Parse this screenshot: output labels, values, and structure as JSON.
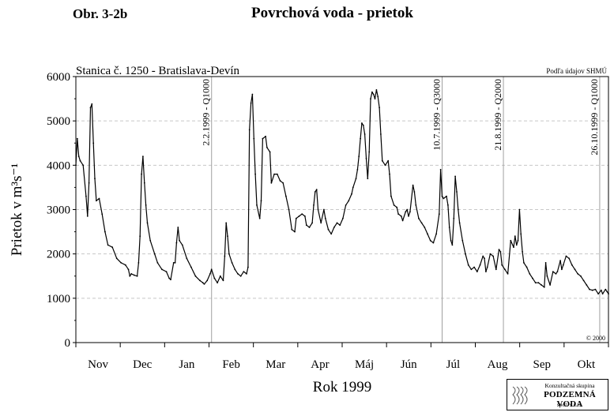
{
  "header": {
    "figure_label": "Obr. 3-2b",
    "title": "Povrchová voda - prietok"
  },
  "chart_data": {
    "type": "line",
    "subtitle": "Stanica č. 1250 - Bratislava-Devín",
    "source_note": "Podľa údajov SHMÚ",
    "copyright": "© 2000",
    "ylabel": "Prietok v m³s⁻¹",
    "xlabel": "Rok 1999",
    "ylim": [
      0,
      6000
    ],
    "yticks": [
      0,
      1000,
      2000,
      3000,
      4000,
      5000,
      6000
    ],
    "grid": "horizontal dashed",
    "months": [
      "Nov",
      "Dec",
      "Jan",
      "Feb",
      "Mar",
      "Apr",
      "Máj",
      "Jún",
      "Júl",
      "Aug",
      "Sep",
      "Okt"
    ],
    "x_range_days": [
      0,
      365
    ],
    "series": [
      {
        "color": "#000000",
        "points": [
          [
            0,
            4000
          ],
          [
            1,
            4600
          ],
          [
            2,
            4200
          ],
          [
            3,
            4100
          ],
          [
            5,
            4000
          ],
          [
            7,
            3300
          ],
          [
            8,
            2850
          ],
          [
            9,
            3600
          ],
          [
            10,
            5300
          ],
          [
            11,
            5380
          ],
          [
            12,
            4500
          ],
          [
            13,
            3700
          ],
          [
            14,
            3200
          ],
          [
            16,
            3250
          ],
          [
            18,
            2900
          ],
          [
            20,
            2500
          ],
          [
            22,
            2200
          ],
          [
            25,
            2150
          ],
          [
            28,
            1900
          ],
          [
            31,
            1800
          ],
          [
            34,
            1750
          ],
          [
            36,
            1650
          ],
          [
            37,
            1500
          ],
          [
            38,
            1550
          ],
          [
            40,
            1520
          ],
          [
            42,
            1500
          ],
          [
            43,
            1800
          ],
          [
            44,
            2400
          ],
          [
            45,
            3800
          ],
          [
            46,
            4200
          ],
          [
            47,
            3600
          ],
          [
            48,
            3100
          ],
          [
            49,
            2700
          ],
          [
            51,
            2300
          ],
          [
            54,
            2000
          ],
          [
            56,
            1800
          ],
          [
            59,
            1650
          ],
          [
            62,
            1600
          ],
          [
            64,
            1450
          ],
          [
            65,
            1420
          ],
          [
            67,
            1800
          ],
          [
            68,
            1800
          ],
          [
            69,
            2250
          ],
          [
            70,
            2600
          ],
          [
            71,
            2300
          ],
          [
            73,
            2200
          ],
          [
            76,
            1900
          ],
          [
            79,
            1700
          ],
          [
            82,
            1500
          ],
          [
            85,
            1400
          ],
          [
            87,
            1350
          ],
          [
            88,
            1320
          ],
          [
            90,
            1400
          ],
          [
            92,
            1550
          ],
          [
            93,
            1650
          ],
          [
            95,
            1450
          ],
          [
            97,
            1350
          ],
          [
            99,
            1500
          ],
          [
            101,
            1400
          ],
          [
            102,
            1950
          ],
          [
            103,
            2700
          ],
          [
            104,
            2400
          ],
          [
            105,
            2000
          ],
          [
            107,
            1800
          ],
          [
            109,
            1650
          ],
          [
            111,
            1550
          ],
          [
            113,
            1500
          ],
          [
            115,
            1600
          ],
          [
            117,
            1550
          ],
          [
            118,
            1700
          ],
          [
            119,
            4800
          ],
          [
            120,
            5400
          ],
          [
            121,
            5600
          ],
          [
            122,
            4600
          ],
          [
            123,
            3800
          ],
          [
            124,
            3100
          ],
          [
            126,
            2800
          ],
          [
            127,
            3200
          ],
          [
            128,
            4600
          ],
          [
            130,
            4650
          ],
          [
            131,
            4400
          ],
          [
            133,
            4300
          ],
          [
            134,
            3600
          ],
          [
            136,
            3800
          ],
          [
            138,
            3800
          ],
          [
            140,
            3650
          ],
          [
            142,
            3600
          ],
          [
            144,
            3300
          ],
          [
            146,
            3000
          ],
          [
            148,
            2550
          ],
          [
            150,
            2500
          ],
          [
            151,
            2800
          ],
          [
            153,
            2850
          ],
          [
            155,
            2900
          ],
          [
            157,
            2850
          ],
          [
            158,
            2650
          ],
          [
            160,
            2600
          ],
          [
            162,
            2700
          ],
          [
            163,
            3100
          ],
          [
            164,
            3400
          ],
          [
            165,
            3450
          ],
          [
            166,
            3000
          ],
          [
            168,
            2700
          ],
          [
            170,
            3000
          ],
          [
            171,
            2800
          ],
          [
            173,
            2550
          ],
          [
            175,
            2450
          ],
          [
            177,
            2600
          ],
          [
            179,
            2700
          ],
          [
            181,
            2650
          ],
          [
            183,
            2800
          ],
          [
            185,
            3100
          ],
          [
            187,
            3200
          ],
          [
            189,
            3350
          ],
          [
            190,
            3500
          ],
          [
            192,
            3700
          ],
          [
            193,
            3900
          ],
          [
            194,
            4200
          ],
          [
            195,
            4600
          ],
          [
            196,
            4950
          ],
          [
            197,
            4900
          ],
          [
            198,
            4700
          ],
          [
            199,
            4150
          ],
          [
            200,
            3700
          ],
          [
            201,
            4300
          ],
          [
            202,
            5500
          ],
          [
            203,
            5650
          ],
          [
            204,
            5600
          ],
          [
            205,
            5500
          ],
          [
            206,
            5700
          ],
          [
            207,
            5550
          ],
          [
            208,
            5300
          ],
          [
            209,
            4700
          ],
          [
            210,
            4100
          ],
          [
            212,
            4000
          ],
          [
            214,
            4100
          ],
          [
            215,
            3800
          ],
          [
            216,
            3300
          ],
          [
            218,
            3100
          ],
          [
            220,
            3050
          ],
          [
            221,
            2900
          ],
          [
            223,
            2850
          ],
          [
            224,
            2750
          ],
          [
            226,
            2950
          ],
          [
            227,
            3000
          ],
          [
            228,
            2850
          ],
          [
            229,
            2950
          ],
          [
            231,
            3550
          ],
          [
            232,
            3400
          ],
          [
            233,
            3100
          ],
          [
            235,
            2800
          ],
          [
            237,
            2700
          ],
          [
            239,
            2600
          ],
          [
            241,
            2450
          ],
          [
            243,
            2300
          ],
          [
            245,
            2250
          ],
          [
            247,
            2450
          ],
          [
            249,
            2900
          ],
          [
            250,
            3900
          ],
          [
            251,
            3300
          ],
          [
            252,
            3250
          ],
          [
            254,
            3300
          ],
          [
            255,
            3100
          ],
          [
            256,
            2600
          ],
          [
            257,
            2300
          ],
          [
            258,
            2200
          ],
          [
            259,
            2800
          ],
          [
            260,
            3750
          ],
          [
            261,
            3400
          ],
          [
            262,
            3000
          ],
          [
            263,
            2700
          ],
          [
            265,
            2300
          ],
          [
            267,
            2000
          ],
          [
            269,
            1750
          ],
          [
            271,
            1650
          ],
          [
            273,
            1700
          ],
          [
            275,
            1600
          ],
          [
            277,
            1750
          ],
          [
            279,
            1950
          ],
          [
            280,
            1900
          ],
          [
            281,
            1600
          ],
          [
            282,
            1700
          ],
          [
            284,
            2000
          ],
          [
            286,
            1950
          ],
          [
            288,
            1650
          ],
          [
            290,
            2100
          ],
          [
            291,
            2050
          ],
          [
            292,
            1750
          ],
          [
            294,
            1650
          ],
          [
            296,
            1550
          ],
          [
            298,
            2300
          ],
          [
            300,
            2150
          ],
          [
            301,
            2400
          ],
          [
            302,
            2200
          ],
          [
            303,
            2300
          ],
          [
            304,
            3000
          ],
          [
            305,
            2450
          ],
          [
            306,
            2050
          ],
          [
            307,
            1800
          ],
          [
            309,
            1700
          ],
          [
            311,
            1550
          ],
          [
            313,
            1450
          ],
          [
            315,
            1350
          ],
          [
            317,
            1350
          ],
          [
            319,
            1300
          ],
          [
            321,
            1250
          ],
          [
            322,
            1800
          ],
          [
            323,
            1500
          ],
          [
            325,
            1300
          ],
          [
            327,
            1600
          ],
          [
            329,
            1550
          ],
          [
            330,
            1600
          ],
          [
            332,
            1850
          ],
          [
            333,
            1650
          ],
          [
            334,
            1750
          ],
          [
            336,
            1950
          ],
          [
            338,
            1900
          ],
          [
            340,
            1750
          ],
          [
            342,
            1650
          ],
          [
            344,
            1550
          ],
          [
            346,
            1500
          ],
          [
            348,
            1400
          ],
          [
            350,
            1300
          ],
          [
            352,
            1200
          ],
          [
            354,
            1180
          ],
          [
            356,
            1200
          ],
          [
            358,
            1100
          ],
          [
            360,
            1180
          ],
          [
            361,
            1100
          ],
          [
            363,
            1200
          ],
          [
            364,
            1150
          ],
          [
            365,
            1100
          ]
        ]
      }
    ],
    "annotations": [
      {
        "day": 93,
        "text": "2.2.1999 - Q1000"
      },
      {
        "day": 251,
        "text": "10.7.1999 - Q3000"
      },
      {
        "day": 293,
        "text": "21.8.1999 - Q2000"
      },
      {
        "day": 359,
        "text": "26.10.1999 - Q1000"
      }
    ]
  },
  "logo": {
    "top": "Konzultačná skupina",
    "name": "PODZEMNÁ VODA",
    "sub": "spol. s r. o."
  }
}
